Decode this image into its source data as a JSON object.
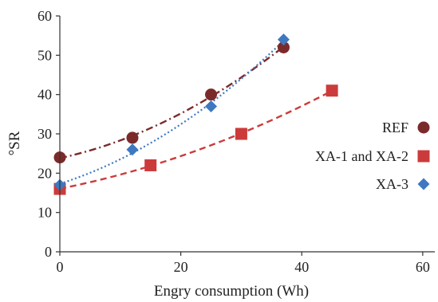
{
  "chart_data": {
    "type": "scatter",
    "title": "",
    "xlabel": "Engry consumption (Wh)",
    "ylabel": "°SR",
    "xlim": [
      0,
      62
    ],
    "ylim": [
      0,
      60
    ],
    "x_ticks": [
      0,
      20,
      40,
      60
    ],
    "y_ticks": [
      0,
      10,
      20,
      30,
      40,
      50,
      60
    ],
    "grid": false,
    "legend_position": "right",
    "series": [
      {
        "name": "REF",
        "marker": "circle",
        "color": "#7b2a2a",
        "line_style": "dash-dot",
        "x": [
          0,
          12,
          25,
          37
        ],
        "y": [
          24,
          29,
          40,
          52
        ]
      },
      {
        "name": "XA-1 and XA-2",
        "marker": "square",
        "color": "#cc3b3b",
        "line_style": "dashed",
        "x": [
          0,
          15,
          30,
          45
        ],
        "y": [
          16,
          22,
          30,
          41
        ]
      },
      {
        "name": "XA-3",
        "marker": "diamond",
        "color": "#3e78c0",
        "line_style": "dotted",
        "x": [
          0,
          12,
          25,
          37
        ],
        "y": [
          17,
          26,
          37,
          54
        ]
      }
    ]
  }
}
